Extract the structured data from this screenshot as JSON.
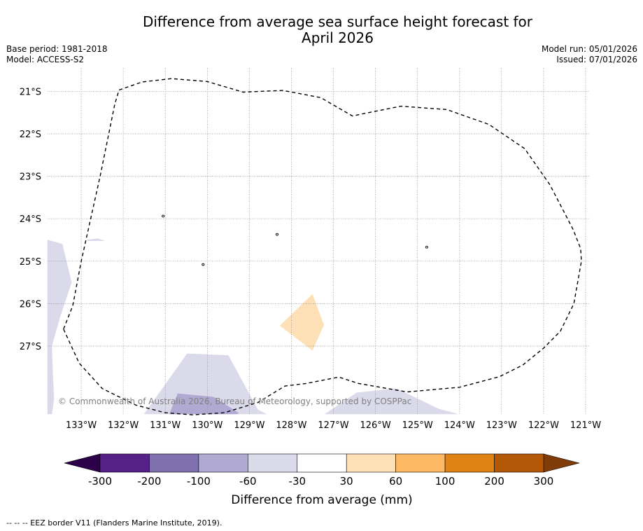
{
  "header": {
    "title_line1": "Difference from average sea surface height forecast for",
    "title_line2": "April 2026",
    "base_period": "Base period: 1981-2018",
    "model": "Model: ACCESS-S2",
    "model_run": "Model run: 05/01/2026",
    "issued": "Issued: 07/01/2026"
  },
  "chart_data": {
    "type": "heatmap",
    "title": "Difference from average sea surface height forecast for April 2026",
    "variable": "Difference from average sea surface height",
    "units": "mm",
    "lon_range": [
      -133.8,
      -120.9
    ],
    "lat_range": [
      -28.6,
      -20.45
    ],
    "lat_ticks": [
      -21,
      -22,
      -23,
      -24,
      -25,
      -26,
      -27
    ],
    "lat_tick_labels": [
      "21°S",
      "22°S",
      "23°S",
      "24°S",
      "25°S",
      "26°S",
      "27°S"
    ],
    "lon_ticks": [
      -133,
      -132,
      -131,
      -130,
      -129,
      -128,
      -127,
      -126,
      -125,
      -124,
      -123,
      -122,
      -121
    ],
    "lon_tick_labels": [
      "133°W",
      "132°W",
      "131°W",
      "130°W",
      "129°W",
      "128°W",
      "127°W",
      "126°W",
      "125°W",
      "124°W",
      "123°W",
      "122°W",
      "121°W"
    ],
    "gridlines": true,
    "colorbar": {
      "label": "Difference from average (mm)",
      "boundaries": [
        -300,
        -200,
        -100,
        -60,
        -30,
        30,
        60,
        100,
        200,
        300
      ],
      "tick_labels": [
        "-300",
        "-200",
        "-100",
        "-60",
        "-30",
        "30",
        "60",
        "100",
        "200",
        "300"
      ],
      "colors": [
        "#552188",
        "#8070ad",
        "#b0a9d2",
        "#dadaeb",
        "#ffffff",
        "#fee0b6",
        "#fdb863",
        "#e08214",
        "#b35806"
      ],
      "under_color": "#2d004b",
      "over_color": "#7f3b08",
      "extend": "both"
    },
    "regions": [
      {
        "name": "western-lobe",
        "range": "-60 to -30",
        "color": "#dadaeb",
        "polygon": [
          [
            -133.8,
            -24.5
          ],
          [
            -133.45,
            -24.6
          ],
          [
            -133.23,
            -25.5
          ],
          [
            -133.5,
            -26.3
          ],
          [
            -133.7,
            -27.0
          ],
          [
            -133.68,
            -27.6
          ],
          [
            -133.65,
            -28.25
          ],
          [
            -133.7,
            -28.6
          ],
          [
            -133.8,
            -28.6
          ]
        ]
      },
      {
        "name": "western-fleck",
        "range": "-60 to -30",
        "color": "#dadaeb",
        "polygon": [
          [
            -132.85,
            -24.5
          ],
          [
            -132.6,
            -24.47
          ],
          [
            -132.45,
            -24.52
          ],
          [
            -132.85,
            -24.52
          ]
        ]
      },
      {
        "name": "southern-lobe",
        "range": "-60 to -30",
        "color": "#dadaeb",
        "polygon": [
          [
            -131.5,
            -28.6
          ],
          [
            -130.48,
            -27.18
          ],
          [
            -129.5,
            -27.22
          ],
          [
            -128.8,
            -28.5
          ],
          [
            -128.6,
            -28.6
          ]
        ]
      },
      {
        "name": "southern-core",
        "range": "-100 to -60",
        "color": "#b0a9d2",
        "polygon": [
          [
            -130.9,
            -28.6
          ],
          [
            -130.7,
            -28.12
          ],
          [
            -129.85,
            -28.2
          ],
          [
            -129.25,
            -28.58
          ],
          [
            -129.3,
            -28.6
          ]
        ]
      },
      {
        "name": "southeast-lobe",
        "range": "-60 to -30",
        "color": "#dadaeb",
        "polygon": [
          [
            -127.2,
            -28.6
          ],
          [
            -126.45,
            -28.1
          ],
          [
            -125.5,
            -28.0
          ],
          [
            -124.5,
            -28.48
          ],
          [
            -124.05,
            -28.6
          ]
        ]
      },
      {
        "name": "central-positive-patch",
        "range": "30 to 60",
        "color": "#fee0b6",
        "polygon": [
          [
            -128.27,
            -26.52
          ],
          [
            -127.5,
            -25.78
          ],
          [
            -127.23,
            -26.5
          ],
          [
            -127.5,
            -27.1
          ]
        ]
      }
    ],
    "eez_border": {
      "style": "dashed",
      "color": "#000000",
      "polyline": [
        [
          -133.42,
          -26.6
        ],
        [
          -133.2,
          -26.05
        ],
        [
          -133.0,
          -25.0
        ],
        [
          -132.55,
          -23.0
        ],
        [
          -132.2,
          -21.3
        ],
        [
          -132.1,
          -20.97
        ],
        [
          -131.55,
          -20.78
        ],
        [
          -130.85,
          -20.7
        ],
        [
          -130.0,
          -20.77
        ],
        [
          -129.15,
          -21.02
        ],
        [
          -128.2,
          -20.98
        ],
        [
          -127.3,
          -21.15
        ],
        [
          -126.55,
          -21.58
        ],
        [
          -125.4,
          -21.35
        ],
        [
          -124.3,
          -21.43
        ],
        [
          -123.3,
          -21.78
        ],
        [
          -122.45,
          -22.35
        ],
        [
          -121.85,
          -23.2
        ],
        [
          -121.3,
          -24.25
        ],
        [
          -121.12,
          -24.7
        ],
        [
          -121.1,
          -25.0
        ],
        [
          -121.28,
          -26.0
        ],
        [
          -121.6,
          -26.65
        ],
        [
          -122.0,
          -27.05
        ],
        [
          -122.5,
          -27.45
        ],
        [
          -123.05,
          -27.72
        ],
        [
          -124.0,
          -27.97
        ],
        [
          -125.25,
          -28.08
        ],
        [
          -126.4,
          -27.88
        ],
        [
          -126.87,
          -27.73
        ],
        [
          -127.65,
          -27.88
        ],
        [
          -128.15,
          -27.94
        ],
        [
          -128.8,
          -28.33
        ],
        [
          -129.6,
          -28.57
        ],
        [
          -130.35,
          -28.62
        ],
        [
          -131.0,
          -28.57
        ],
        [
          -131.7,
          -28.39
        ],
        [
          -132.5,
          -28.0
        ],
        [
          -133.05,
          -27.4
        ],
        [
          -133.42,
          -26.6
        ]
      ]
    },
    "islands": [
      {
        "name": "island-a",
        "lon": -131.05,
        "lat": -23.94
      },
      {
        "name": "island-b",
        "lon": -128.34,
        "lat": -24.37
      },
      {
        "name": "island-c",
        "lon": -124.78,
        "lat": -24.67
      },
      {
        "name": "island-d",
        "lon": -130.1,
        "lat": -25.08
      }
    ]
  },
  "copyright": "© Commonwealth of Australia 2026, Bureau of Meteorology, supported by COSPPac",
  "footer": {
    "legend_text": "--  --  -- EEZ border V11 (Flanders Marine Institute, 2019)."
  }
}
